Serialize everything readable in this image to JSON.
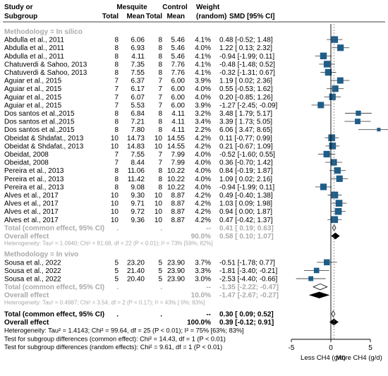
{
  "chart_data": {
    "type": "forest",
    "title": "",
    "headers": {
      "study_line1": "Study or",
      "study_line2": "Subgroup",
      "mesquite_group": "Mesquite",
      "mesquite_total": "Total",
      "mesquite_mean": "Mean",
      "control_group": "Control",
      "control_total": "Total",
      "control_mean": "Mean",
      "weight_line1": "Weight",
      "weight_line2": "(random)",
      "smd": "SMD [95% CI]"
    },
    "subgroups": [
      {
        "label": "Methodology = In silico",
        "studies": [
          {
            "study": "Abdulla et al., 2011",
            "mes_total": "8",
            "mes_mean": "6.06",
            "ctl_total": "8",
            "ctl_mean": "5.46",
            "weight": "4.1%",
            "ci_text": "0.48 [-0.52; 1.48]",
            "smd": 0.48,
            "lo": -0.52,
            "hi": 1.48
          },
          {
            "study": "Abdulla et al., 2011",
            "mes_total": "8",
            "mes_mean": "6.93",
            "ctl_total": "8",
            "ctl_mean": "5.46",
            "weight": "4.0%",
            "ci_text": "1.22 [ 0.13; 2.32]",
            "smd": 1.22,
            "lo": 0.13,
            "hi": 2.32
          },
          {
            "study": "Abdulla et al., 2011",
            "mes_total": "8",
            "mes_mean": "4.11",
            "ctl_total": "8",
            "ctl_mean": "5.46",
            "weight": "4.1%",
            "ci_text": "-0.94 [-1.99; 0.11]",
            "smd": -0.94,
            "lo": -1.99,
            "hi": 0.11
          },
          {
            "study": "Chatuverdi & Sahoo, 2013",
            "mes_total": "8",
            "mes_mean": "7.35",
            "ctl_total": "8",
            "ctl_mean": "7.76",
            "weight": "4.1%",
            "ci_text": "-0.48 [-1.48; 0.52]",
            "smd": -0.48,
            "lo": -1.48,
            "hi": 0.52
          },
          {
            "study": "Chatuverdi & Sahoo, 2013",
            "mes_total": "8",
            "mes_mean": "7.55",
            "ctl_total": "8",
            "ctl_mean": "7.76",
            "weight": "4.1%",
            "ci_text": "-0.32 [-1.31; 0.67]",
            "smd": -0.32,
            "lo": -1.31,
            "hi": 0.67
          },
          {
            "study": "Aguiar et al., 2015",
            "mes_total": "7",
            "mes_mean": "6.37",
            "ctl_total": "7",
            "ctl_mean": "6.00",
            "weight": "3.9%",
            "ci_text": "1.19 [ 0.02; 2.36]",
            "smd": 1.19,
            "lo": 0.02,
            "hi": 2.36
          },
          {
            "study": "Aguiar et al., 2015",
            "mes_total": "7",
            "mes_mean": "6.17",
            "ctl_total": "7",
            "ctl_mean": "6.00",
            "weight": "4.0%",
            "ci_text": "0.55 [-0.53; 1.62]",
            "smd": 0.55,
            "lo": -0.53,
            "hi": 1.62
          },
          {
            "study": "Aguiar et al., 2015",
            "mes_total": "7",
            "mes_mean": "6.07",
            "ctl_total": "7",
            "ctl_mean": "6.00",
            "weight": "4.0%",
            "ci_text": "0.20 [-0.85; 1.26]",
            "smd": 0.2,
            "lo": -0.85,
            "hi": 1.26
          },
          {
            "study": "Aguiar et al., 2015",
            "mes_total": "7",
            "mes_mean": "5.53",
            "ctl_total": "7",
            "ctl_mean": "6.00",
            "weight": "3.9%",
            "ci_text": "-1.27 [-2.45; -0.09]",
            "smd": -1.27,
            "lo": -2.45,
            "hi": -0.09
          },
          {
            "study": "Dos santos et al.,2015",
            "mes_total": "8",
            "mes_mean": "6.84",
            "ctl_total": "8",
            "ctl_mean": "4.11",
            "weight": "3.2%",
            "ci_text": "3.48 [ 1.79; 5.17]",
            "smd": 3.48,
            "lo": 1.79,
            "hi": 5.17
          },
          {
            "study": "Dos santos et al.,2015",
            "mes_total": "8",
            "mes_mean": "7.21",
            "ctl_total": "8",
            "ctl_mean": "4.11",
            "weight": "3.4%",
            "ci_text": "3.39 [ 1.73; 5.05]",
            "smd": 3.39,
            "lo": 1.73,
            "hi": 5.05
          },
          {
            "study": "Dos santos et al.,2015",
            "mes_total": "8",
            "mes_mean": "7.80",
            "ctl_total": "8",
            "ctl_mean": "4.11",
            "weight": "2.2%",
            "ci_text": "6.06 [ 3.47; 8.65]",
            "smd": 6.06,
            "lo": 3.47,
            "hi": 8.65
          },
          {
            "study": "Obeidat & Shdafat., 2013",
            "mes_total": "10",
            "mes_mean": "14.73",
            "ctl_total": "10",
            "ctl_mean": "14.55",
            "weight": "4.2%",
            "ci_text": "0.11 [-0.77; 0.99]",
            "smd": 0.11,
            "lo": -0.77,
            "hi": 0.99
          },
          {
            "study": "Obeidat & Shdafat., 2013",
            "mes_total": "10",
            "mes_mean": "14.83",
            "ctl_total": "10",
            "ctl_mean": "14.55",
            "weight": "4.2%",
            "ci_text": "0.21 [-0.67; 1.09]",
            "smd": 0.21,
            "lo": -0.67,
            "hi": 1.09
          },
          {
            "study": "Obeidat, 2008",
            "mes_total": "7",
            "mes_mean": "7.55",
            "ctl_total": "7",
            "ctl_mean": "7.99",
            "weight": "4.0%",
            "ci_text": "-0.52 [-1.60; 0.55]",
            "smd": -0.52,
            "lo": -1.6,
            "hi": 0.55
          },
          {
            "study": "Obeidat, 2008",
            "mes_total": "7",
            "mes_mean": "8.44",
            "ctl_total": "7",
            "ctl_mean": "7.99",
            "weight": "4.0%",
            "ci_text": "0.36 [-0.70; 1.42]",
            "smd": 0.36,
            "lo": -0.7,
            "hi": 1.42
          },
          {
            "study": "Pereira et al., 2013",
            "mes_total": "8",
            "mes_mean": "11.06",
            "ctl_total": "8",
            "ctl_mean": "10.22",
            "weight": "4.0%",
            "ci_text": "0.84 [-0.19; 1.87]",
            "smd": 0.84,
            "lo": -0.19,
            "hi": 1.87
          },
          {
            "study": "Pereira et al., 2013",
            "mes_total": "8",
            "mes_mean": "11.42",
            "ctl_total": "8",
            "ctl_mean": "10.22",
            "weight": "4.0%",
            "ci_text": "1.09 [ 0.02; 2.16]",
            "smd": 1.09,
            "lo": 0.02,
            "hi": 2.16
          },
          {
            "study": "Pereira et al., 2013",
            "mes_total": "8",
            "mes_mean": "9.08",
            "ctl_total": "8",
            "ctl_mean": "10.22",
            "weight": "4.0%",
            "ci_text": "-0.94 [-1.99; 0.11]",
            "smd": -0.94,
            "lo": -1.99,
            "hi": 0.11
          },
          {
            "study": "Alves et al., 2017",
            "mes_total": "10",
            "mes_mean": "9.30",
            "ctl_total": "10",
            "ctl_mean": "8.87",
            "weight": "4.2%",
            "ci_text": "0.49 [-0.40; 1.38]",
            "smd": 0.49,
            "lo": -0.4,
            "hi": 1.38
          },
          {
            "study": "Alves et al., 2017",
            "mes_total": "10",
            "mes_mean": "9.71",
            "ctl_total": "10",
            "ctl_mean": "8.87",
            "weight": "4.2%",
            "ci_text": "1.03 [ 0.09; 1.98]",
            "smd": 1.03,
            "lo": 0.09,
            "hi": 1.98
          },
          {
            "study": "Alves et al., 2017",
            "mes_total": "10",
            "mes_mean": "9.72",
            "ctl_total": "10",
            "ctl_mean": "8.87",
            "weight": "4.2%",
            "ci_text": "0.94 [ 0.00; 1.87]",
            "smd": 0.94,
            "lo": 0.0,
            "hi": 1.87
          },
          {
            "study": "Alves et al., 2017",
            "mes_total": "10",
            "mes_mean": "9.36",
            "ctl_total": "10",
            "ctl_mean": "8.87",
            "weight": "4.2%",
            "ci_text": "0.47 [-0.42; 1.37]",
            "smd": 0.47,
            "lo": -0.42,
            "hi": 1.37
          }
        ],
        "common": {
          "label": "Total (common effect, 95% CI)",
          "ci_text": "0.41 [ 0.19; 0.63]",
          "smd": 0.41,
          "lo": 0.19,
          "hi": 0.63,
          "mes_total": ".",
          "ctl_total": ".",
          "weight": "--"
        },
        "overall": {
          "label": "Overall effect",
          "ci_text": "0.58 [ 0.10; 1.07]",
          "smd": 0.58,
          "lo": 0.1,
          "hi": 1.07,
          "weight": "90.0%"
        },
        "heterogeneity": "Heterogeneity: Tau² = 1.0940; Chi² = 81.68, df = 22 (P < 0.01); I² = 73% [59%; 82%]"
      },
      {
        "label": "Methodology = In vivo",
        "studies": [
          {
            "study": "Sousa et al., 2022",
            "mes_total": "5",
            "mes_mean": "23.20",
            "ctl_total": "5",
            "ctl_mean": "23.90",
            "weight": "3.7%",
            "ci_text": "-0.51 [-1.78; 0.77]",
            "smd": -0.51,
            "lo": -1.78,
            "hi": 0.77
          },
          {
            "study": "Sousa et al., 2022",
            "mes_total": "5",
            "mes_mean": "21.40",
            "ctl_total": "5",
            "ctl_mean": "23.90",
            "weight": "3.3%",
            "ci_text": "-1.81 [-3.40; -0.21]",
            "smd": -1.81,
            "lo": -3.4,
            "hi": -0.21
          },
          {
            "study": "Sousa et al., 2022",
            "mes_total": "5",
            "mes_mean": "20.40",
            "ctl_total": "5",
            "ctl_mean": "23.90",
            "weight": "3.0%",
            "ci_text": "-2.53 [-4.40; -0.66]",
            "smd": -2.53,
            "lo": -4.4,
            "hi": -0.66
          }
        ],
        "common": {
          "label": "Total (common effect, 95% CI)",
          "ci_text": "-1.35 [-2.22; -0.47]",
          "smd": -1.35,
          "lo": -2.22,
          "hi": -0.47,
          "mes_total": ".",
          "ctl_total": ".",
          "weight": "--"
        },
        "overall": {
          "label": "Overall effect",
          "ci_text": "-1.47 [-2.67; -0.27]",
          "smd": -1.47,
          "lo": -2.67,
          "hi": -0.27,
          "weight": "10.0%"
        },
        "heterogeneity": "Heterogeneity: Tau² = 0.4987; Chi² = 3.54, df = 2 (P = 0.17); I² = 43% [ 0%; 83%]"
      }
    ],
    "total_common": {
      "label": "Total (common effect, 95% CI)",
      "ci_text": "0.30 [ 0.09; 0.52]",
      "smd": 0.3,
      "lo": 0.09,
      "hi": 0.52,
      "mes_total": ".",
      "ctl_total": ".",
      "weight": "--"
    },
    "total_overall": {
      "label": "Overall effect",
      "ci_text": "0.39 [-0.12; 0.91]",
      "smd": 0.39,
      "lo": -0.12,
      "hi": 0.91,
      "weight": "100.0%"
    },
    "footer": [
      "Heterogeneity: Tau² = 1.4143; Chi² = 99.64, df = 25 (P < 0.01); I² = 75% [63%; 83%]",
      "Test for subgroup differences (common effect): Chi² = 14.43, df = 1 (P < 0.01)",
      "Test for subgroup differences (random effects): Chi² = 9.61, df = 1 (P < 0.01)"
    ],
    "x_axis": {
      "min": -5,
      "max": 5,
      "ticks": [
        "-5",
        "0",
        "5"
      ],
      "ref": 0
    },
    "left_label": "Less CH4 (g/d)",
    "right_label": "More CH4 (g/d)",
    "colors": {
      "square": "#1f5d89",
      "text": "#000000",
      "subtotal_text": "#aaaaaa",
      "ci_line": "#4d4d4d"
    }
  }
}
